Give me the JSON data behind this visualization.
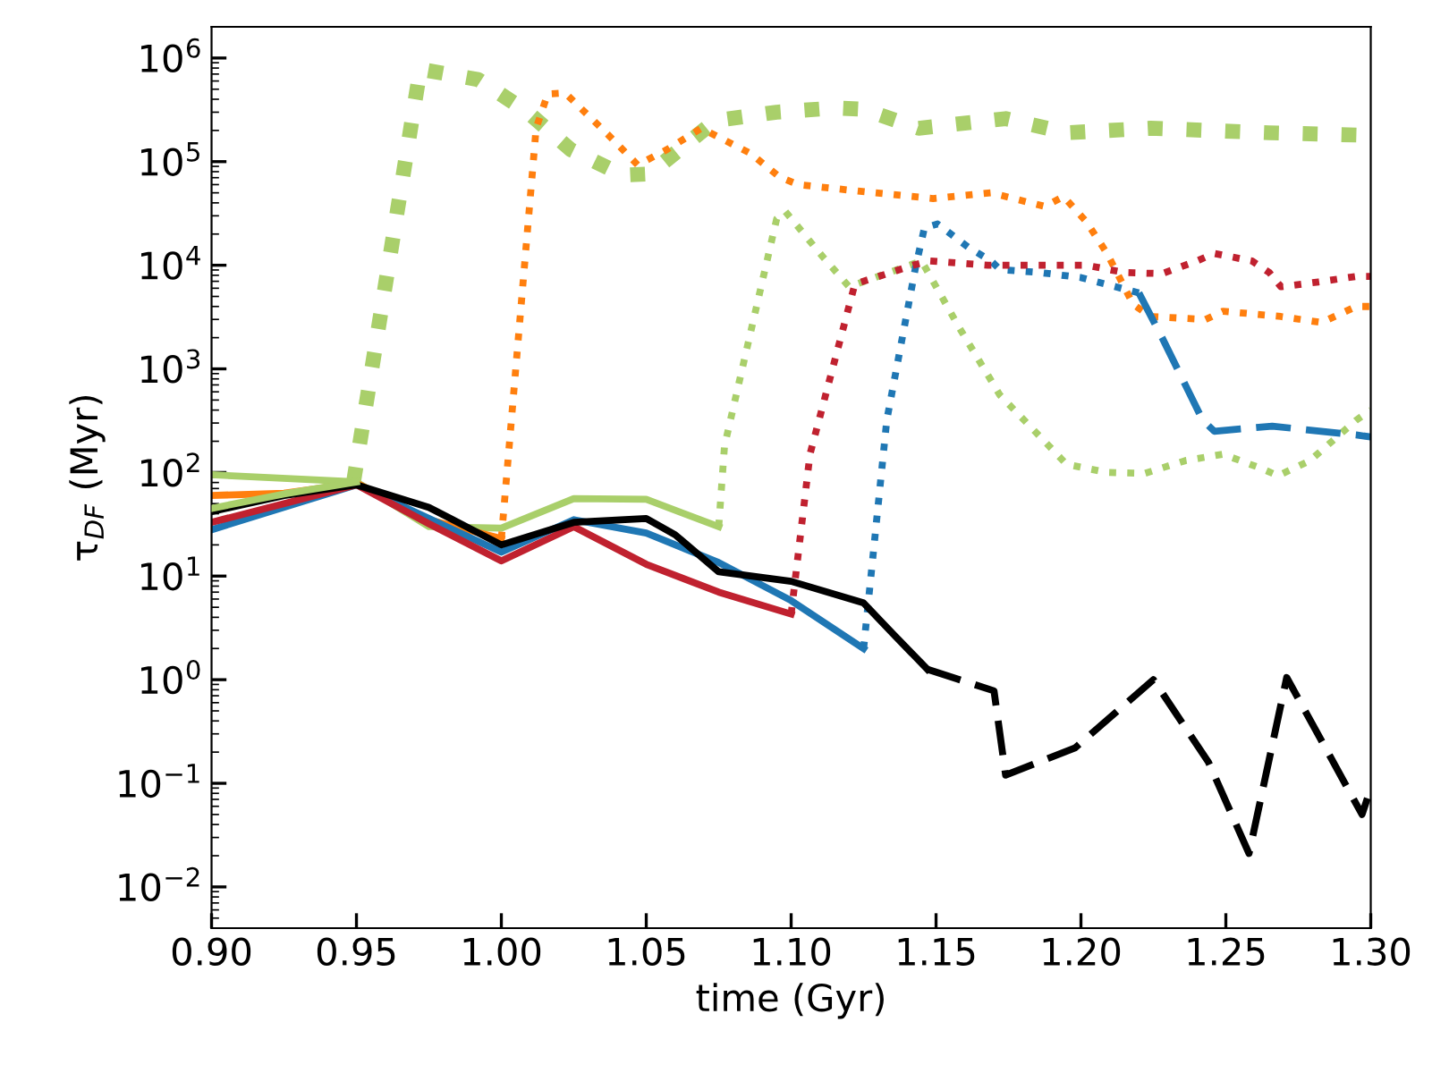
{
  "chart_data": {
    "type": "line",
    "xlabel": "time (Gyr)",
    "ylabel": "τ$_{DF}$ (Myr)",
    "log": "y",
    "grid": false,
    "marker": "none",
    "xlim": [
      0.9,
      1.3
    ],
    "xticks": [
      {
        "value": 0.9,
        "label": "0.90"
      },
      {
        "value": 0.95,
        "label": "0.95"
      },
      {
        "value": 1.0,
        "label": "1.00"
      },
      {
        "value": 1.05,
        "label": "1.05"
      },
      {
        "value": 1.1,
        "label": "1.10"
      },
      {
        "value": 1.15,
        "label": "1.15"
      },
      {
        "value": 1.2,
        "label": "1.20"
      },
      {
        "value": 1.25,
        "label": "1.25"
      },
      {
        "value": 1.3,
        "label": "1.30"
      }
    ],
    "ylim": [
      0.004,
      2000000
    ],
    "yticks": [
      {
        "value": 0.01,
        "label": "10$^{−2}$"
      },
      {
        "value": 0.1,
        "label": "10$^{−1}$"
      },
      {
        "value": 1,
        "label": "10$^{0}$"
      },
      {
        "value": 10,
        "label": "10$^{1}$"
      },
      {
        "value": 100,
        "label": "10$^{2}$"
      },
      {
        "value": 1000,
        "label": "10$^{3}$"
      },
      {
        "value": 10000,
        "label": "10$^{4}$"
      },
      {
        "value": 100000,
        "label": "10$^{5}$"
      },
      {
        "value": 1000000,
        "label": "10$^{6}$"
      }
    ],
    "series": [
      {
        "color": "#a9cf6a",
        "line_style": "solid",
        "x": [
          0.9,
          0.925,
          0.95
        ],
        "values": [
          45,
          62,
          81
        ]
      },
      {
        "color": "#a9cf6a",
        "line_style": "dotted",
        "x": [
          0.949,
          0.972,
          0.992,
          1.0085,
          1.024,
          1.042,
          1.051,
          1.074,
          1.095,
          1.115,
          1.125,
          1.144,
          1.174,
          1.195,
          1.224,
          1.265,
          1.297,
          1.3
        ],
        "values": [
          81,
          780000,
          620000,
          310000,
          130000,
          74000,
          76000,
          250000,
          300000,
          330000,
          320000,
          210000,
          260000,
          190000,
          210000,
          190000,
          180000,
          170000
        ]
      },
      {
        "color": "#a9cf6a",
        "line_style": "solid",
        "x": [
          0.9,
          0.95,
          0.975,
          1.0,
          1.025,
          1.05,
          1.075
        ],
        "values": [
          95,
          81,
          30,
          29,
          56,
          55,
          30
        ]
      },
      {
        "color": "#a9cf6a",
        "line_style": "dotted",
        "x": [
          1.075,
          1.077,
          1.095,
          1.098,
          1.111,
          1.12,
          1.145,
          1.158,
          1.172,
          1.186,
          1.195,
          1.209,
          1.222,
          1.236,
          1.249,
          1.262,
          1.268,
          1.279,
          1.295,
          1.3
        ],
        "values": [
          30,
          180,
          28000,
          33000,
          12000,
          6200,
          11000,
          2500,
          560,
          220,
          120,
          100,
          98,
          130,
          150,
          110,
          93,
          130,
          320,
          400
        ]
      },
      {
        "color": "#ff7f0e",
        "line_style": "solid",
        "x": [
          0.9,
          0.925,
          0.95,
          0.975,
          1.0
        ],
        "values": [
          60,
          63,
          79,
          35,
          23
        ]
      },
      {
        "color": "#ff7f0e",
        "line_style": "dotted",
        "x": [
          1.0,
          1.012,
          1.016,
          1.022,
          1.037,
          1.047,
          1.057,
          1.069,
          1.086,
          1.096,
          1.1025,
          1.123,
          1.149,
          1.169,
          1.1875,
          1.194,
          1.202,
          1.209,
          1.218,
          1.224,
          1.243,
          1.249,
          1.269,
          1.283,
          1.295,
          1.3
        ],
        "values": [
          23,
          210000,
          450000,
          460000,
          180000,
          93000,
          130000,
          210000,
          120000,
          71000,
          60000,
          52000,
          44000,
          50000,
          37000,
          46000,
          26000,
          13000,
          4200,
          3200,
          3000,
          3600,
          3200,
          2800,
          4000,
          4000
        ]
      },
      {
        "color": "#1f77b4",
        "line_style": "solid",
        "x": [
          0.9,
          0.95,
          0.975,
          1.0,
          1.025,
          1.05,
          1.075,
          1.1,
          1.125
        ],
        "values": [
          28,
          76,
          36,
          17,
          35,
          26,
          13.5,
          5.8,
          2.0
        ]
      },
      {
        "color": "#1f77b4",
        "line_style": "dotted",
        "x": [
          1.125,
          1.133,
          1.143,
          1.146,
          1.1505,
          1.161,
          1.169,
          1.172,
          1.186,
          1.2,
          1.212,
          1.22
        ],
        "values": [
          2.0,
          320,
          9800,
          23000,
          25000,
          15000,
          11000,
          9100,
          8500,
          7600,
          6200,
          5400
        ]
      },
      {
        "color": "#1f77b4",
        "line_style": "dashed",
        "x": [
          1.22,
          1.228,
          1.242,
          1.246,
          1.266,
          1.295,
          1.3
        ],
        "values": [
          5400,
          2000,
          320,
          250,
          280,
          230,
          220
        ]
      },
      {
        "color": "#c0212f",
        "line_style": "solid",
        "x": [
          0.9,
          0.95,
          0.975,
          1.0,
          1.025,
          1.05,
          1.075,
          1.1
        ],
        "values": [
          33,
          76,
          32,
          14,
          30,
          13,
          7,
          4.3
        ]
      },
      {
        "color": "#c0212f",
        "line_style": "dotted",
        "x": [
          1.1,
          1.1065,
          1.122,
          1.129,
          1.142,
          1.148,
          1.168,
          1.1875,
          1.202,
          1.215,
          1.228,
          1.24,
          1.246,
          1.259,
          1.265,
          1.269,
          1.282,
          1.295,
          1.3
        ],
        "values": [
          4.3,
          150,
          6600,
          7600,
          10000,
          11000,
          10000,
          10000,
          10000,
          8500,
          8300,
          11000,
          13000,
          11000,
          8500,
          6200,
          6900,
          7800,
          7800
        ]
      },
      {
        "color": "#000000",
        "line_style": "solid",
        "x": [
          0.9,
          0.925,
          0.95,
          0.975,
          1.0,
          1.025,
          1.05,
          1.06,
          1.075,
          1.1,
          1.125,
          1.135,
          1.147
        ],
        "values": [
          42,
          60,
          76,
          46,
          20,
          33,
          36,
          25,
          11,
          8.9,
          5.5,
          2.8,
          1.26
        ]
      },
      {
        "color": "#000000",
        "line_style": "dashed",
        "x": [
          1.147,
          1.17,
          1.174,
          1.198,
          1.225,
          1.244,
          1.258,
          1.271,
          1.297,
          1.3
        ],
        "values": [
          1.26,
          0.78,
          0.12,
          0.22,
          1.0,
          0.16,
          0.021,
          1.05,
          0.05,
          0.09
        ]
      }
    ]
  }
}
